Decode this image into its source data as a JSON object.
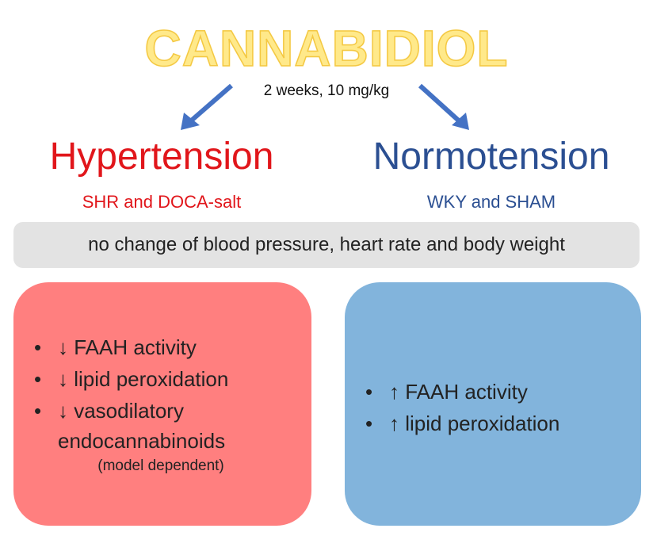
{
  "title": "CANNABIDIOL",
  "dose": "2 weeks, 10 mg/kg",
  "left": {
    "title": "Hypertension",
    "subtitle": "SHR and DOCA-salt",
    "items": [
      "↓ FAAH activity",
      "↓ lipid peroxidation",
      "↓ vasodilatory"
    ],
    "continuation": "endocannabinoids",
    "note": "(model dependent)"
  },
  "right": {
    "title": "Normotension",
    "subtitle": "WKY and SHAM",
    "items": [
      "↑ FAAH activity",
      "↑ lipid peroxidation"
    ]
  },
  "banner": "no  change of blood pressure, heart rate and body weight",
  "bullet_symbol": "•",
  "colors": {
    "title_fill": "#ffe98a",
    "title_outline": "#f4c842",
    "arrow": "#4472c4",
    "hypertension": "#e1161b",
    "normotension": "#2b4f92",
    "banner_bg": "#e3e3e3",
    "left_panel": "#ff7f7f",
    "right_panel": "#82b4dc"
  }
}
